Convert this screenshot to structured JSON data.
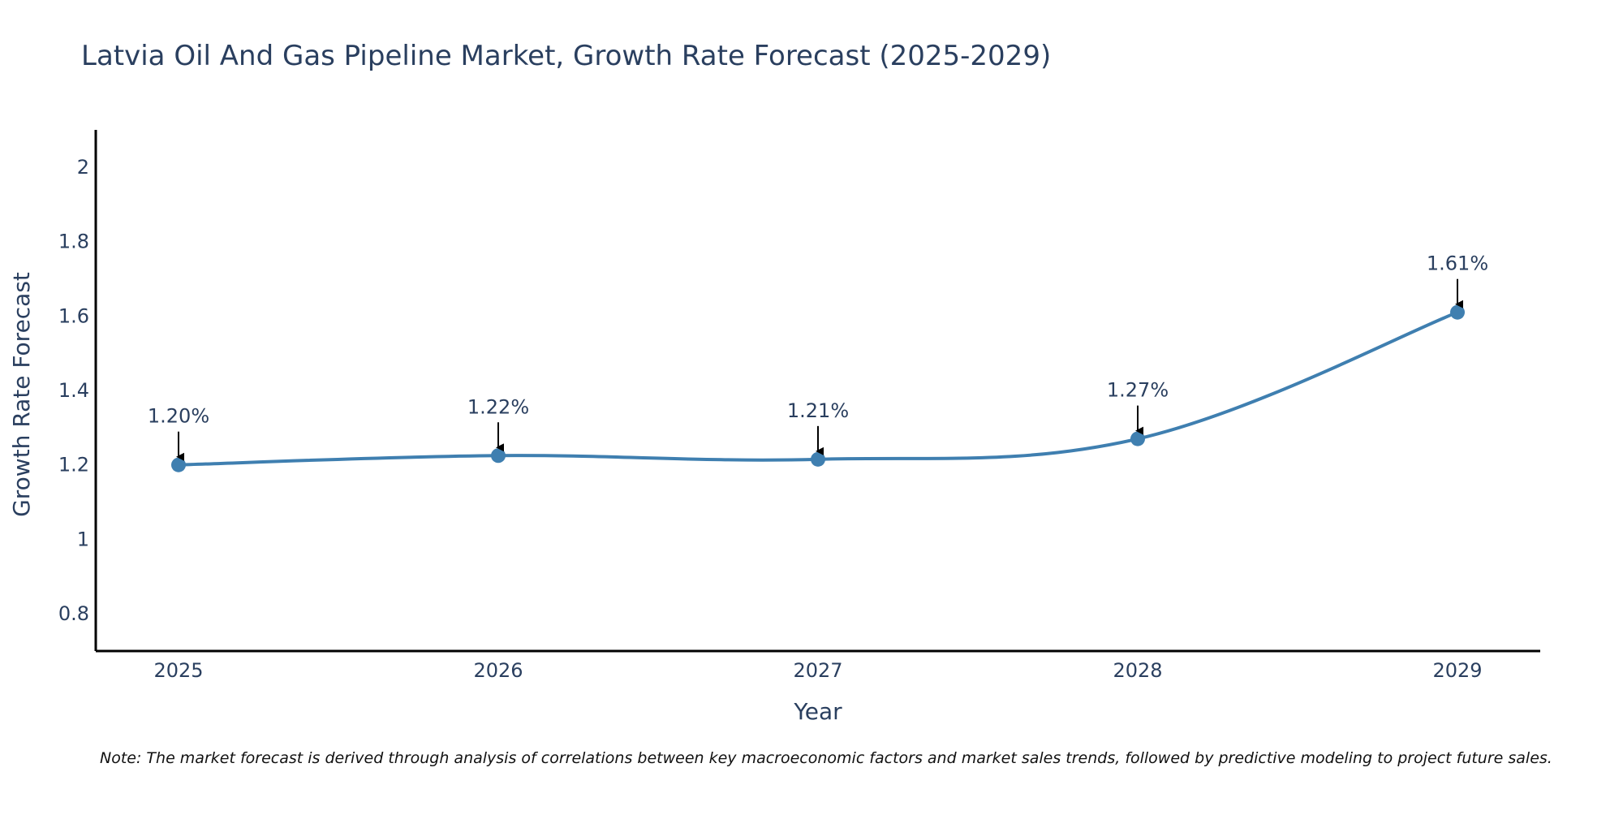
{
  "chart_data": {
    "type": "line",
    "title": "Latvia Oil And Gas Pipeline Market, Growth Rate Forecast (2025-2029)",
    "xlabel": "Year",
    "ylabel": "Growth Rate Forecast",
    "categories": [
      "2025",
      "2026",
      "2027",
      "2028",
      "2029"
    ],
    "series": [
      {
        "name": "Growth Rate Forecast",
        "values": [
          1.2,
          1.225,
          1.215,
          1.27,
          1.61
        ],
        "labels": [
          "1.20%",
          "1.22%",
          "1.21%",
          "1.27%",
          "1.61%"
        ],
        "color": "#3f7fb0"
      }
    ],
    "ylim": [
      0.7,
      2.1
    ],
    "yticks": [
      0.8,
      1,
      1.2,
      1.4,
      1.6,
      1.8,
      2
    ],
    "ytick_labels": [
      "0.8",
      "1",
      "1.2",
      "1.4",
      "1.6",
      "1.8",
      "2"
    ],
    "grid": false
  },
  "note": "Note: The market forecast is derived through analysis of correlations between key macroeconomic factors and market sales trends, followed by predictive modeling to project future sales.",
  "colors": {
    "line": "#3f7fb0",
    "text": "#2a3f5f",
    "axis": "#000000"
  }
}
